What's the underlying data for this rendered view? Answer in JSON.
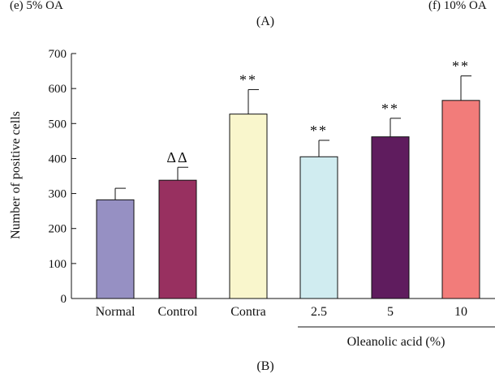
{
  "top_panel": {
    "caption_left": "(e) 5% OA",
    "caption_right": "(f) 10% OA",
    "panel_label": "(A)"
  },
  "bottom_panel": {
    "panel_label": "(B)"
  },
  "chart_data": {
    "type": "bar",
    "ylabel": "Number of positive cells",
    "xlabel": "",
    "ylim": [
      0,
      700
    ],
    "yticks": [
      0,
      100,
      200,
      300,
      400,
      500,
      600,
      700
    ],
    "grid": false,
    "group_label": "Oleanolic acid (%)",
    "group_categories": [
      "2.5",
      "5",
      "10"
    ],
    "categories": [
      "Normal",
      "Control",
      "Contra",
      "2.5",
      "5",
      "10"
    ],
    "values": [
      282,
      338,
      527,
      405,
      462,
      566
    ],
    "errors": [
      33,
      37,
      70,
      47,
      53,
      70
    ],
    "annotations": [
      "",
      "ΔΔ",
      "**",
      "**",
      "**",
      "**"
    ],
    "colors": [
      "#9690c3",
      "#983060",
      "#f9f6cc",
      "#d0ecf0",
      "#5f1c5e",
      "#f27c7a"
    ]
  }
}
